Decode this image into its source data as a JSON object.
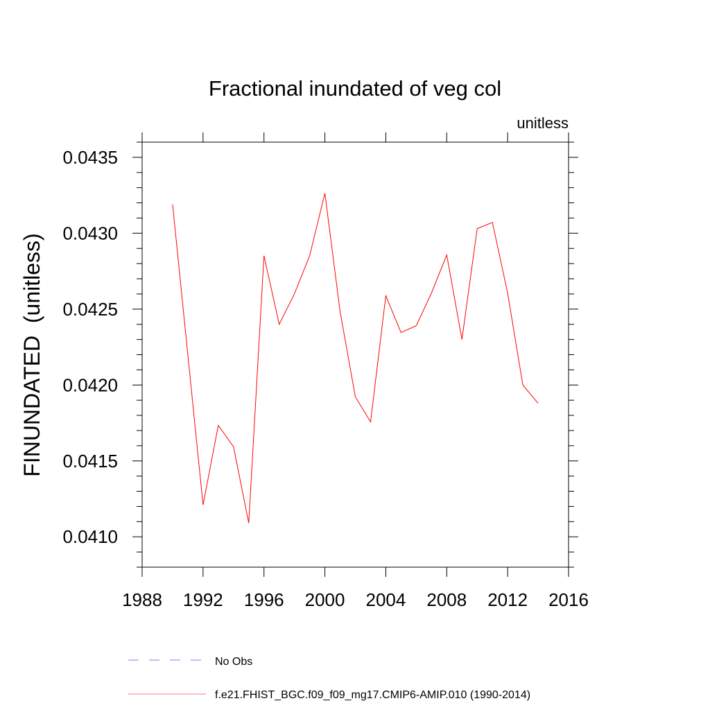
{
  "chart_data": {
    "type": "line",
    "title": "Fractional inundated of veg col",
    "units_label": "unitless",
    "xlabel": "",
    "ylabel": "FINUNDATED  (unitless)",
    "xlim": [
      1988,
      2016
    ],
    "ylim": [
      0.0408,
      0.0436
    ],
    "xticks": [
      1988,
      1992,
      1996,
      2000,
      2004,
      2008,
      2012,
      2016
    ],
    "xtick_labels": [
      "1988",
      "1992",
      "1996",
      "2000",
      "2004",
      "2008",
      "2012",
      "2016"
    ],
    "yticks": [
      0.041,
      0.0415,
      0.042,
      0.0425,
      0.043,
      0.0435
    ],
    "ytick_labels": [
      "0.0410",
      "0.0415",
      "0.0420",
      "0.0425",
      "0.0430",
      "0.0435"
    ],
    "grid": false,
    "series": [
      {
        "name": "f.e21.FHIST_BGC.f09_f09_mg17.CMIP6-AMIP.010 (1990-2014)",
        "color": "#ff0000",
        "legend_color": "#f08080",
        "x": [
          1990,
          1991,
          1992,
          1993,
          1994,
          1995,
          1996,
          1997,
          1998,
          1999,
          2000,
          2001,
          2002,
          2003,
          2004,
          2005,
          2006,
          2007,
          2008,
          2009,
          2010,
          2011,
          2012,
          2013,
          2014
        ],
        "values": [
          0.04319,
          0.0422,
          0.04121,
          0.041734,
          0.041593,
          0.041091,
          0.042852,
          0.0424,
          0.042601,
          0.042852,
          0.043263,
          0.042483,
          0.041922,
          0.041757,
          0.042588,
          0.042346,
          0.042391,
          0.042606,
          0.042857,
          0.0423,
          0.04303,
          0.043071,
          0.042606,
          0.041999,
          0.04188
        ]
      }
    ],
    "legend": [
      {
        "label": "No Obs",
        "color": "#7f7fff",
        "style": "dashed"
      },
      {
        "label": "f.e21.FHIST_BGC.f09_f09_mg17.CMIP6-AMIP.010 (1990-2014)",
        "color": "#f08080",
        "style": "solid"
      }
    ],
    "legend_placement": "bottom"
  }
}
